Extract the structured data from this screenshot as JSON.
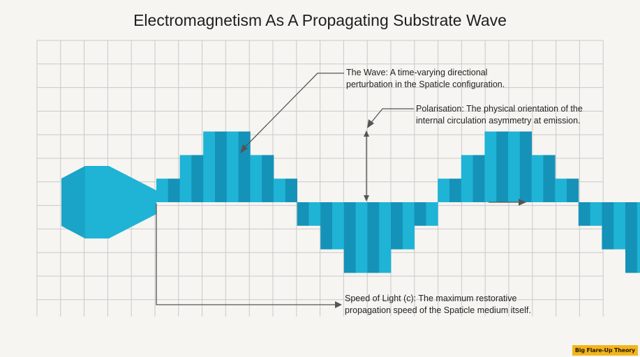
{
  "title": "Electromagnetism As A Propagating Substrate Wave",
  "colors": {
    "background": "#f6f5f1",
    "grid": "#c9c9c9",
    "wave_light": "#1fb3d6",
    "wave_dark": "#1592b8",
    "arrow": "#555555",
    "watermark_bg": "#f2b51c"
  },
  "annotations": {
    "wave": {
      "line1": "The Wave: A time-varying directional",
      "line2": "perturbation in the Spaticle configuration."
    },
    "polarisation": {
      "line1": "Polarisation: The physical orientation of the",
      "line2": "internal circulation asymmetry at emission."
    },
    "speed": {
      "line1": "Speed of Light (c): The maximum restorative",
      "line2": "propagation speed of the Spaticle medium itself."
    }
  },
  "wave_cycles": [
    {
      "heights": [
        1,
        2,
        3,
        3,
        2,
        1
      ]
    },
    {
      "heights": [
        1,
        2,
        3,
        3,
        2,
        1
      ]
    }
  ],
  "watermark": "Big Flare-Up Theory"
}
